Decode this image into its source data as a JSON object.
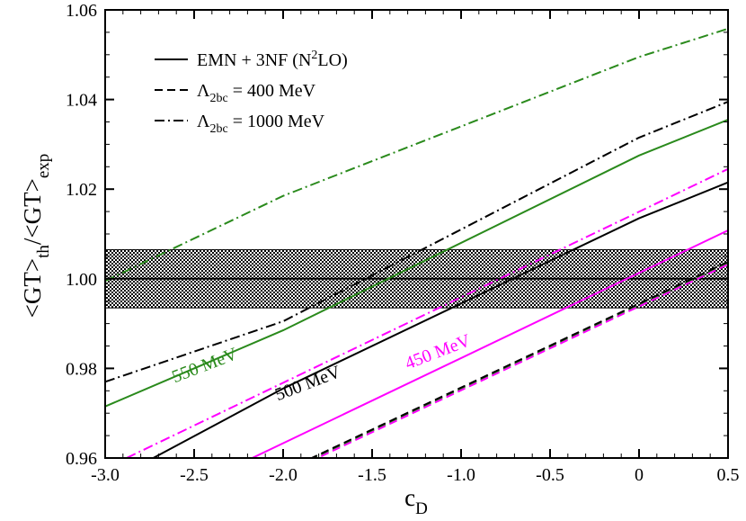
{
  "chart_data": {
    "type": "line",
    "xlabel": "c",
    "xlabel_sub": "D",
    "ylabel_parts": [
      "<GT>",
      "th",
      "/<GT>",
      "exp"
    ],
    "xlim": [
      -3.0,
      0.5
    ],
    "ylim": [
      0.96,
      1.06
    ],
    "xticks": [
      -3.0,
      -2.5,
      -2.0,
      -1.5,
      -1.0,
      -0.5,
      0,
      0.5
    ],
    "xtick_labels": [
      "-3.0",
      "-2.5",
      "-2.0",
      "-1.5",
      "-1.0",
      "-0.5",
      "0",
      "0.5"
    ],
    "yticks": [
      0.96,
      0.98,
      1.0,
      1.02,
      1.04,
      1.06
    ],
    "ytick_labels": [
      "0.96",
      "0.98",
      "1.00",
      "1.02",
      "1.04",
      "1.06"
    ],
    "legend_position": "top-left",
    "legend": [
      {
        "style": "solid",
        "parts": [
          [
            "EMN + 3NF (N",
            "normal"
          ],
          [
            "2",
            "super"
          ],
          [
            "LO)",
            "normal"
          ]
        ]
      },
      {
        "style": "dashed",
        "parts": [
          [
            "Λ",
            "normal"
          ],
          [
            "2bc",
            "sub"
          ],
          [
            " = 400 MeV",
            "normal"
          ]
        ]
      },
      {
        "style": "dashdot",
        "parts": [
          [
            "Λ",
            "normal"
          ],
          [
            "2bc",
            "sub"
          ],
          [
            " = 1000 MeV",
            "normal"
          ]
        ]
      }
    ],
    "band": {
      "center": 1.0,
      "low": 0.9935,
      "high": 1.0065
    },
    "curve_labels": [
      {
        "text": "550 MeV",
        "color": "#2a8a1c",
        "x": -2.43,
        "y": 0.9795,
        "angle": -21
      },
      {
        "text": "500 MeV",
        "color": "#000000",
        "x": -1.85,
        "y": 0.9755,
        "angle": -21
      },
      {
        "text": "450 MeV",
        "color": "#ff00ff",
        "x": -1.12,
        "y": 0.9825,
        "angle": -21
      }
    ],
    "series": [
      {
        "group": "550 MeV",
        "style": "solid",
        "color": "#2a8a1c",
        "x": [
          -3.0,
          -2.0,
          0.0,
          0.5
        ],
        "y": [
          0.9715,
          0.9885,
          1.0275,
          1.0355
        ]
      },
      {
        "group": "550 MeV",
        "style": "dashdot",
        "color": "#2a8a1c",
        "x": [
          -3.0,
          -2.0,
          0.0,
          0.5
        ],
        "y": [
          0.9995,
          1.0185,
          1.0495,
          1.0558
        ]
      },
      {
        "group": "550 MeV",
        "style": "dashed",
        "color": "#2a8a1c",
        "x": [
          -1.85,
          0.5
        ],
        "y": [
          0.9595,
          1.0035
        ]
      },
      {
        "group": "500 MeV",
        "style": "solid",
        "color": "#000000",
        "x": [
          -2.73,
          -2.0,
          0.0,
          0.5
        ],
        "y": [
          0.96,
          0.9755,
          1.0135,
          1.0215
        ]
      },
      {
        "group": "500 MeV",
        "style": "dashdot",
        "color": "#000000",
        "x": [
          -3.0,
          -2.0,
          0.0,
          0.5
        ],
        "y": [
          0.977,
          0.9905,
          1.0315,
          1.0395
        ]
      },
      {
        "group": "500 MeV",
        "style": "dashed",
        "color": "#000000",
        "x": [
          -1.85,
          0.5
        ],
        "y": [
          0.9598,
          1.0038
        ]
      },
      {
        "group": "450 MeV",
        "style": "solid",
        "color": "#ff00ff",
        "x": [
          -2.2,
          0.5
        ],
        "y": [
          0.9595,
          1.0108
        ]
      },
      {
        "group": "450 MeV",
        "style": "dashdot",
        "color": "#ff00ff",
        "x": [
          -2.88,
          0.5
        ],
        "y": [
          0.96,
          1.0245
        ]
      },
      {
        "group": "450 MeV",
        "style": "dashed",
        "color": "#ff00ff",
        "x": [
          -1.85,
          0.5
        ],
        "y": [
          0.9592,
          1.0032
        ]
      }
    ]
  }
}
